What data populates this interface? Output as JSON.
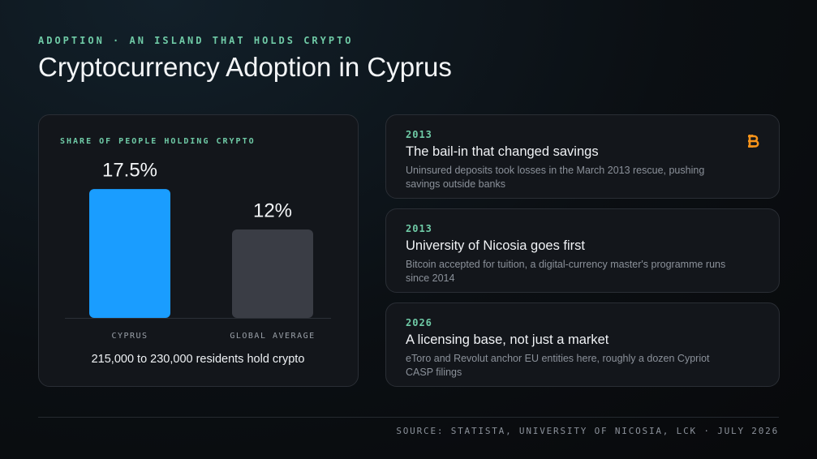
{
  "header": {
    "kicker": "ADOPTION · AN ISLAND THAT HOLDS CRYPTO",
    "title": "Cryptocurrency Adoption in Cyprus"
  },
  "chart_data": {
    "type": "bar",
    "title": "SHARE OF PEOPLE HOLDING CRYPTO",
    "categories": [
      "CYPRUS",
      "GLOBAL AVERAGE"
    ],
    "values": [
      17.5,
      12
    ],
    "value_labels": [
      "17.5%",
      "12%"
    ],
    "colors": [
      "#1a9dff",
      "#3a3d45"
    ],
    "annotation": "215,000 to 230,000 residents hold crypto"
  },
  "cards": [
    {
      "year": "2013",
      "title": "The bail-in that changed savings",
      "text": "Uninsured deposits took losses in the March 2013 rescue, pushing savings outside banks"
    },
    {
      "year": "2013",
      "title": "University of Nicosia goes first",
      "text": "Bitcoin accepted for tuition, a digital-currency master's programme runs since 2014"
    },
    {
      "year": "2026",
      "title": "A licensing base, not just a market",
      "text": "eToro and Revolut anchor EU entities here, roughly a dozen Cypriot CASP filings"
    }
  ],
  "footer": {
    "source": "SOURCE: STATISTA, UNIVERSITY OF NICOSIA, LCK · JULY 2026"
  }
}
